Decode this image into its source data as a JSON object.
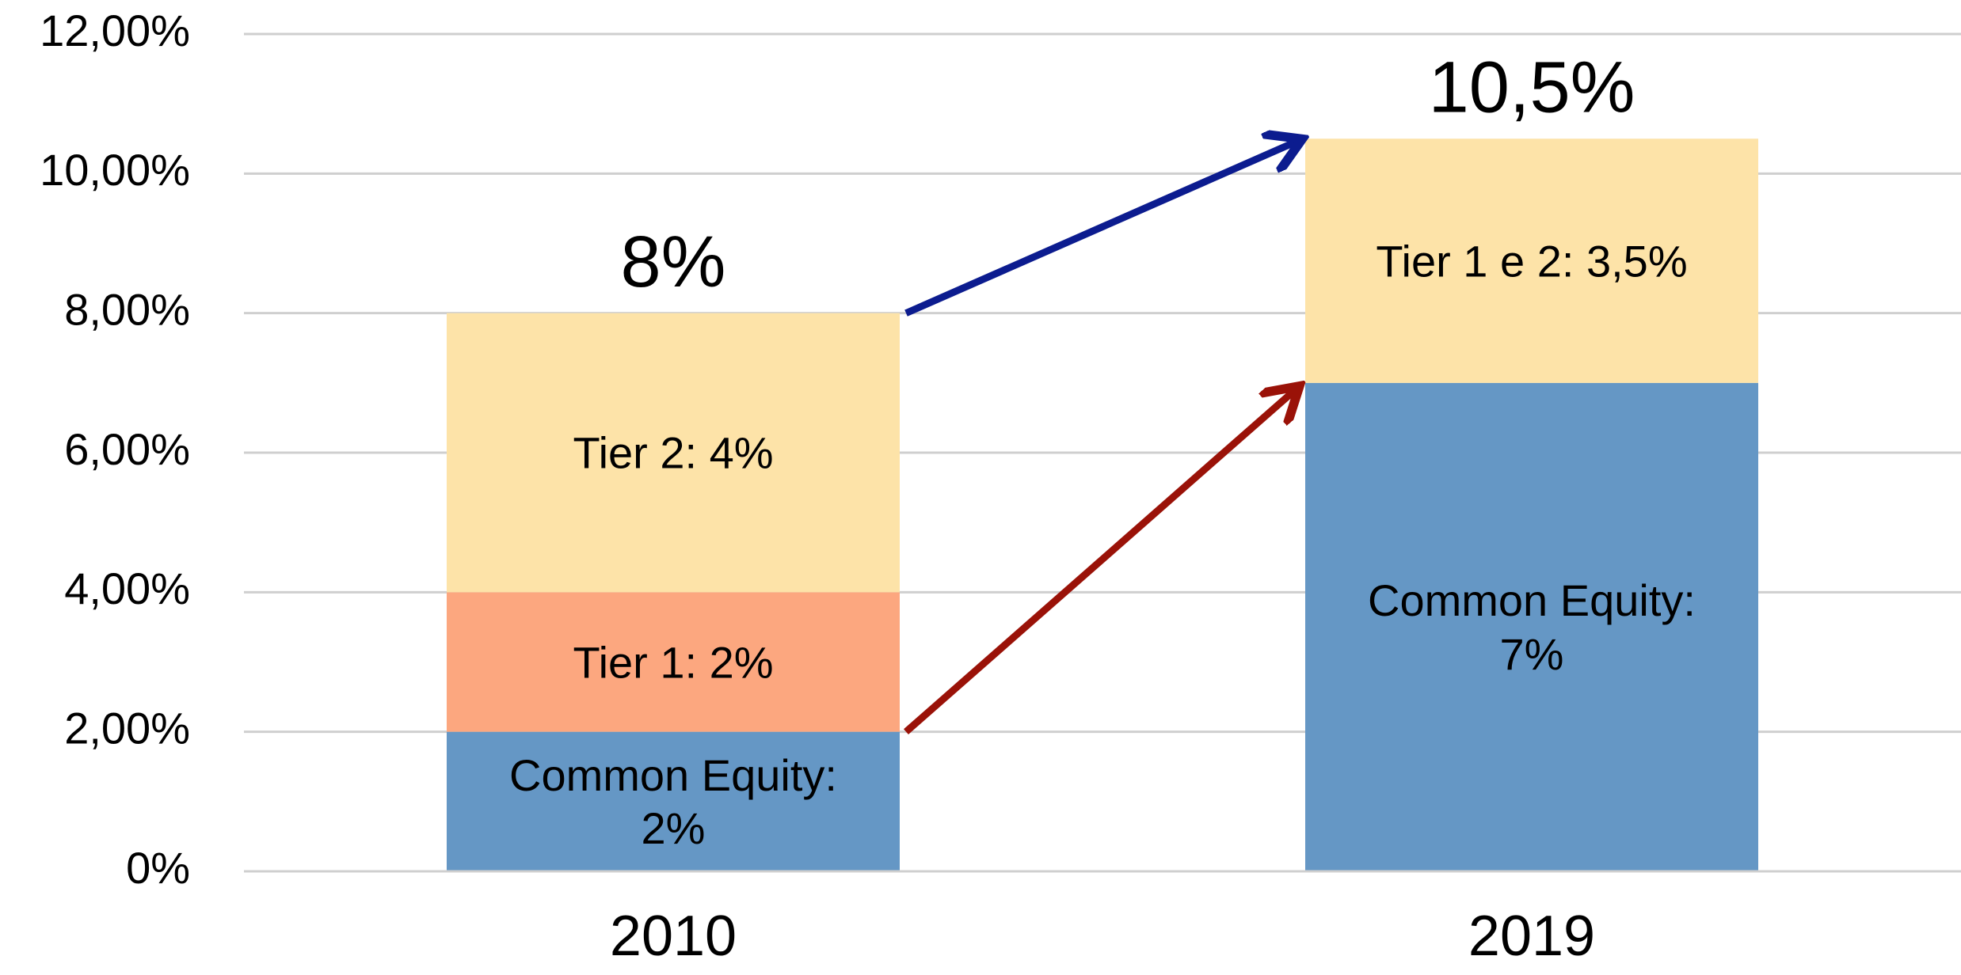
{
  "chart_data": {
    "type": "stacked_bar",
    "categories": [
      "2010",
      "2019"
    ],
    "series": [
      {
        "color": "#6597c5",
        "values": [
          2,
          7
        ],
        "value_labels": [
          "Common Equity: 2%",
          "Common Equity: 7%"
        ]
      },
      {
        "color": "#fca77f",
        "values": [
          2,
          null
        ],
        "value_labels": [
          "Tier 1: 2%",
          null
        ]
      },
      {
        "color": "#fde3a8",
        "values": [
          4,
          null
        ],
        "value_labels": [
          "Tier 2: 4%",
          null
        ]
      },
      {
        "color": "#fde3a8",
        "values": [
          null,
          3.5
        ],
        "value_labels": [
          null,
          "Tier 1 e 2: 3,5%"
        ]
      }
    ],
    "annotations": [
      "8%",
      "10,5%"
    ],
    "ylim": [
      0,
      12
    ],
    "yticks": [
      {
        "value": 0,
        "label": "0%"
      },
      {
        "value": 2,
        "label": "2,00%"
      },
      {
        "value": 4,
        "label": "4,00%"
      },
      {
        "value": 6,
        "label": "6,00%"
      },
      {
        "value": 8,
        "label": "8,00%"
      },
      {
        "value": 10,
        "label": "10,00%"
      },
      {
        "value": 12,
        "label": "12,00%"
      }
    ],
    "grid": true
  }
}
